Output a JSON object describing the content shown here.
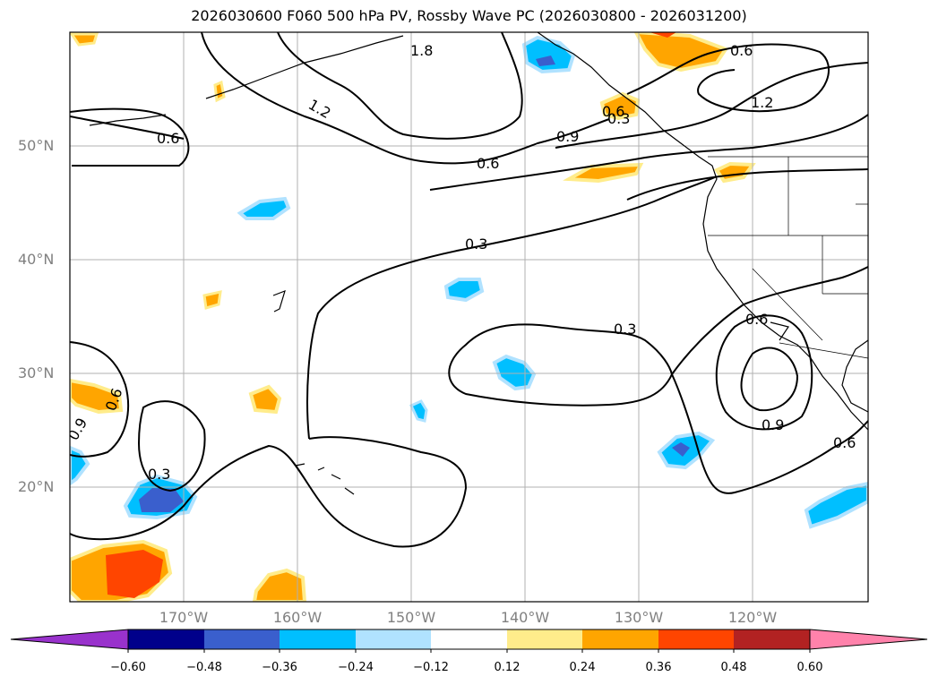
{
  "title": "2026030600 F060 500 hPa PV, Rossby Wave PC (2026030800 - 2026031200)",
  "lat_labels": [
    "50°N",
    "40°N",
    "30°N",
    "20°N"
  ],
  "lon_labels": [
    "170°W",
    "160°W",
    "150°W",
    "140°W",
    "130°W",
    "120°W"
  ],
  "colorbar": {
    "ticks": [
      "−0.60",
      "−0.48",
      "−0.36",
      "−0.24",
      "−0.12",
      "0.12",
      "0.24",
      "0.36",
      "0.48",
      "0.60"
    ],
    "colors": [
      "#9932cc",
      "#00008b",
      "#3a5fcd",
      "#00bfff",
      "#b0e2ff",
      "#ffffff",
      "#ffec8b",
      "#ffa500",
      "#ff4500",
      "#b22222",
      "#ff82ab"
    ]
  },
  "contour_labels": [
    "1.8",
    "0.6",
    "1.2",
    "0.6",
    "0.9",
    "0.6",
    "0.6",
    "1.2",
    "0.3",
    "0.3",
    "0.6",
    "0.9",
    "0.6",
    "0.9",
    "0.3",
    "0.6",
    "0.3"
  ]
}
